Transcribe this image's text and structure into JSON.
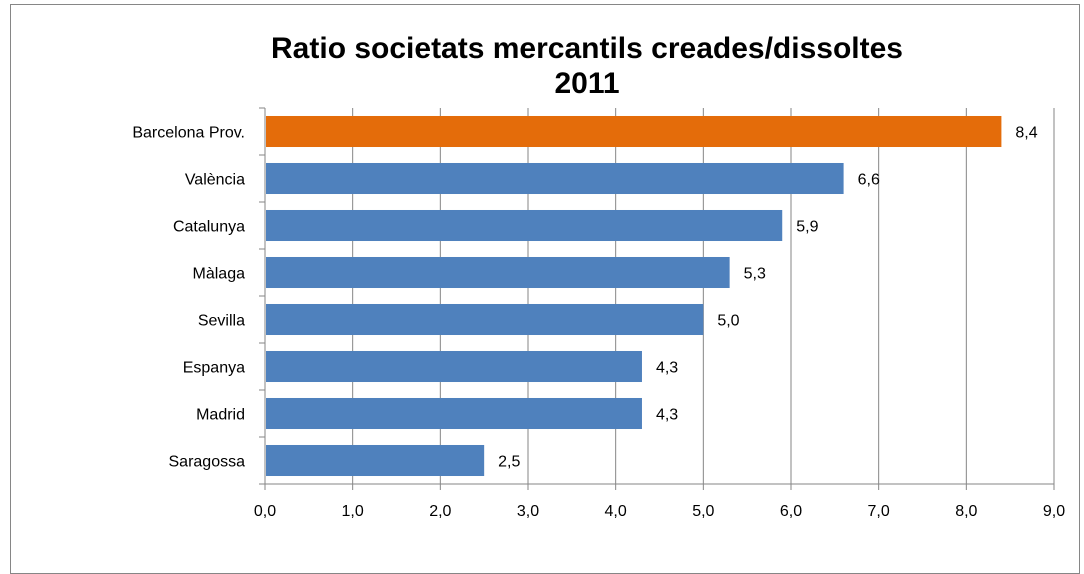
{
  "chart_data": {
    "type": "bar",
    "orientation": "horizontal",
    "title": [
      "Ratio societats mercantils creades/dissoltes",
      "2011"
    ],
    "categories": [
      "Barcelona Prov.",
      "València",
      "Catalunya",
      "Màlaga",
      "Sevilla",
      "Espanya",
      "Madrid",
      "Saragossa"
    ],
    "values": [
      8.4,
      6.6,
      5.9,
      5.3,
      5.0,
      4.3,
      4.3,
      2.5
    ],
    "data_labels": [
      "8,4",
      "6,6",
      "5,9",
      "5,3",
      "5,0",
      "4,3",
      "4,3",
      "2,5"
    ],
    "xlim": [
      0,
      9
    ],
    "x_ticks": [
      "0,0",
      "1,0",
      "2,0",
      "3,0",
      "4,0",
      "5,0",
      "6,0",
      "7,0",
      "8,0",
      "9,0"
    ],
    "grid": true,
    "legend": false,
    "colors": {
      "highlight": "#E46C0A",
      "default": "#4F81BD",
      "grid": "#868686",
      "axis": "#868686"
    },
    "highlight_index": 0
  }
}
